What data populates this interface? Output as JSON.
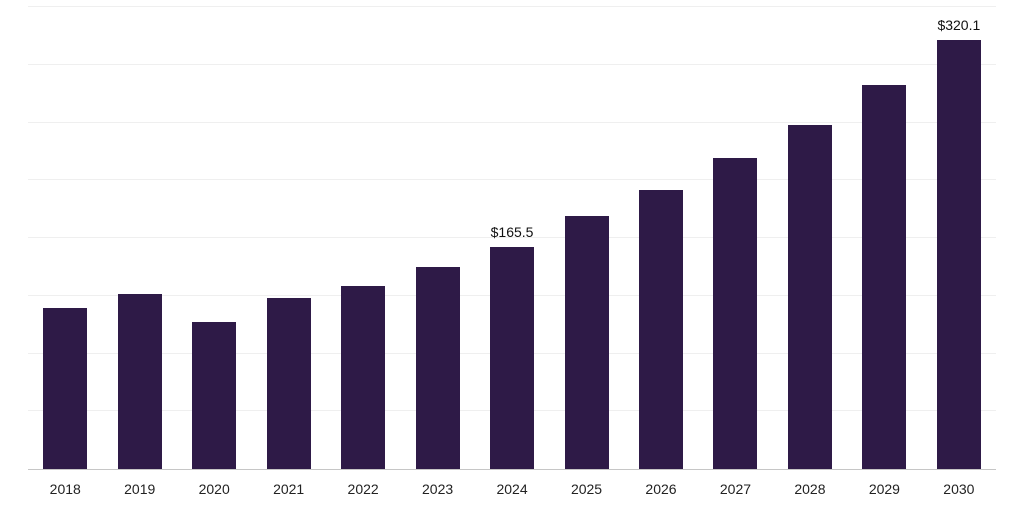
{
  "chart_data": {
    "type": "bar",
    "title": "",
    "xlabel": "",
    "ylabel": "",
    "categories": [
      "2018",
      "2019",
      "2020",
      "2021",
      "2022",
      "2023",
      "2024",
      "2025",
      "2026",
      "2027",
      "2028",
      "2029",
      "2030"
    ],
    "values": [
      120.5,
      130.5,
      110.0,
      128.0,
      137.0,
      150.5,
      165.5,
      189.0,
      208.5,
      232.5,
      257.0,
      287.0,
      320.1
    ],
    "data_labels": {
      "2024": "$165.5",
      "2030": "$320.1"
    },
    "ylim": [
      0,
      345
    ],
    "grid": "horizontal",
    "legend": "none",
    "bar_color": "#2e1a47",
    "axis_line_color": "#c6c6c6",
    "gridline_color": "#efefef",
    "label_color": "#111111",
    "tick_color": "#222222"
  }
}
